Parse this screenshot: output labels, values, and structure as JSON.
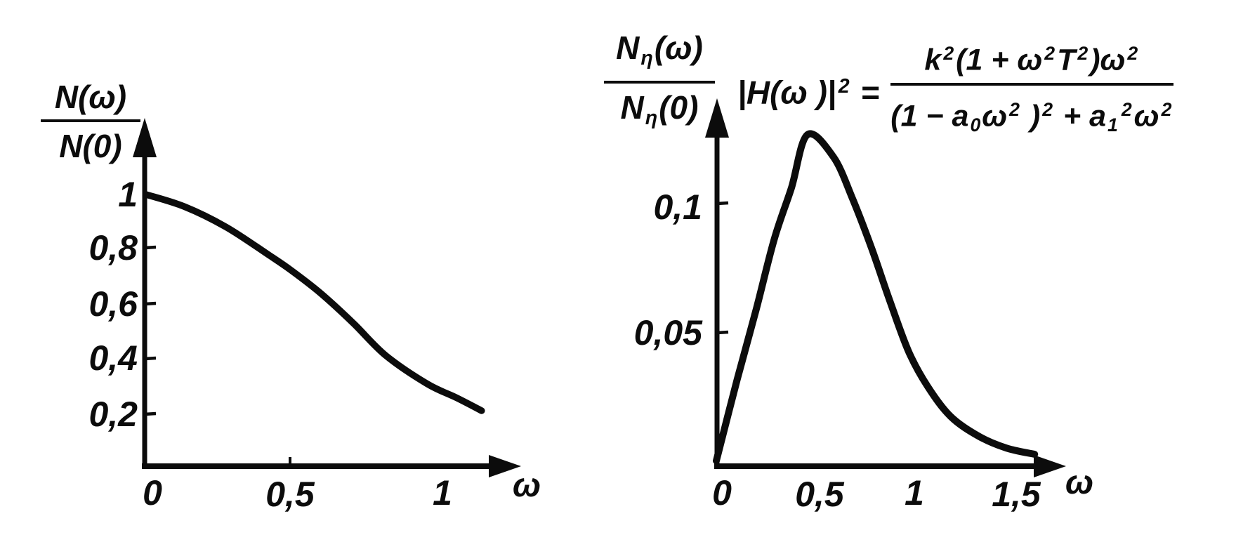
{
  "figure": {
    "background": "#ffffff",
    "ink": "#0c0c0c"
  },
  "chart_data": [
    {
      "type": "line",
      "id": "input-noise-spectrum",
      "x_axis_label": "ω",
      "y_axis_label_numerator": [
        {
          "t": "txt",
          "v": "N(ω)"
        }
      ],
      "y_axis_label_denominator": [
        {
          "t": "txt",
          "v": "N(0)"
        }
      ],
      "x_ticks": [
        {
          "value": 0,
          "label": "0"
        },
        {
          "value": 0.5,
          "label": "0,5"
        },
        {
          "value": 1,
          "label": "1"
        }
      ],
      "y_ticks": [
        {
          "value": 1,
          "label": "1"
        },
        {
          "value": 0.8,
          "label": "0,8"
        },
        {
          "value": 0.6,
          "label": "0,6"
        },
        {
          "value": 0.4,
          "label": "0,4"
        },
        {
          "value": 0.2,
          "label": "0,2"
        }
      ],
      "x_range": [
        0,
        1.27
      ],
      "y_range": [
        0,
        1.18
      ],
      "grid": false,
      "legend": null,
      "points": [
        [
          0,
          1.0
        ],
        [
          0.13,
          0.955
        ],
        [
          0.27,
          0.88
        ],
        [
          0.41,
          0.78
        ],
        [
          0.49,
          0.72
        ],
        [
          0.59,
          0.635
        ],
        [
          0.7,
          0.525
        ],
        [
          0.81,
          0.405
        ],
        [
          0.95,
          0.3
        ],
        [
          1.05,
          0.248
        ],
        [
          1.135,
          0.2
        ]
      ]
    },
    {
      "type": "line",
      "id": "differentiated-noise-spectrum",
      "x_axis_label": "ω",
      "y_axis_label_numerator": [
        {
          "t": "txt",
          "v": "N"
        },
        {
          "t": "sub",
          "v": "η"
        },
        {
          "t": "txt",
          "v": "(ω)"
        }
      ],
      "y_axis_label_denominator": [
        {
          "t": "txt",
          "v": "N"
        },
        {
          "t": "sub",
          "v": "η"
        },
        {
          "t": "txt",
          "v": "(0)"
        }
      ],
      "x_ticks": [
        {
          "value": 0,
          "label": "0"
        },
        {
          "value": 0.5,
          "label": "0,5"
        },
        {
          "value": 1,
          "label": "1"
        },
        {
          "value": 1.5,
          "label": "1,5"
        }
      ],
      "y_ticks": [
        {
          "value": 0.1,
          "label": "0,1"
        },
        {
          "value": 0.05,
          "label": "0,05"
        }
      ],
      "x_range": [
        0,
        1.73
      ],
      "y_range": [
        0,
        0.139
      ],
      "grid": false,
      "legend": null,
      "peak": {
        "omega": 0.45,
        "value": 0.127
      },
      "points": [
        [
          0,
          0.001
        ],
        [
          0.105,
          0.0325
        ],
        [
          0.2,
          0.0595
        ],
        [
          0.29,
          0.0865
        ],
        [
          0.375,
          0.106
        ],
        [
          0.455,
          0.1265
        ],
        [
          0.585,
          0.118
        ],
        [
          0.68,
          0.102
        ],
        [
          0.775,
          0.083
        ],
        [
          0.865,
          0.063
        ],
        [
          0.96,
          0.0432
        ],
        [
          1.055,
          0.0297
        ],
        [
          1.17,
          0.0181
        ],
        [
          1.31,
          0.0105
        ],
        [
          1.45,
          0.0059
        ],
        [
          1.59,
          0.0035
        ]
      ],
      "annotation_formula": {
        "lhs": [
          {
            "t": "txt",
            "v": "|H(ω )|"
          },
          {
            "t": "sup",
            "v": "2"
          },
          {
            "t": "txt",
            "v": " ="
          }
        ],
        "numerator": [
          {
            "t": "txt",
            "v": "k"
          },
          {
            "t": "sup",
            "v": "2"
          },
          {
            "t": "txt",
            "v": "(1 + ω"
          },
          {
            "t": "sup",
            "v": "2"
          },
          {
            "t": "txt",
            "v": "T"
          },
          {
            "t": "sup",
            "v": "2"
          },
          {
            "t": "txt",
            "v": ")ω"
          },
          {
            "t": "sup",
            "v": "2"
          }
        ],
        "denominator": [
          {
            "t": "txt",
            "v": "(1 − a"
          },
          {
            "t": "sub",
            "v": "0"
          },
          {
            "t": "txt",
            "v": "ω"
          },
          {
            "t": "sup",
            "v": "2"
          },
          {
            "t": "txt",
            "v": " )"
          },
          {
            "t": "sup",
            "v": "2"
          },
          {
            "t": "txt",
            "v": " + a"
          },
          {
            "t": "sub",
            "v": "1"
          },
          {
            "t": "sup",
            "v": "2"
          },
          {
            "t": "txt",
            "v": "ω"
          },
          {
            "t": "sup",
            "v": "2"
          }
        ]
      }
    }
  ]
}
